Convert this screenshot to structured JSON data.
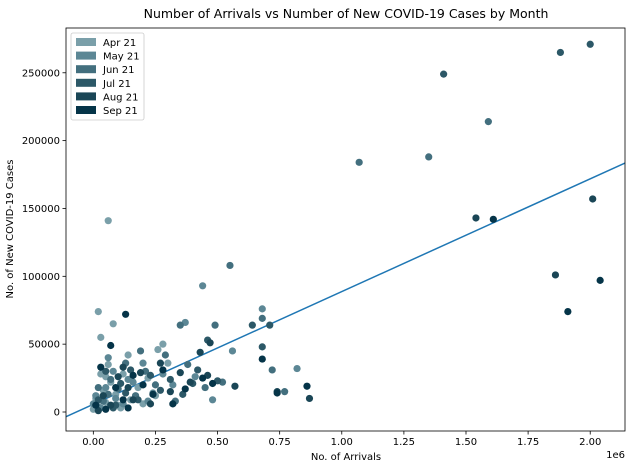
{
  "chart_data": {
    "type": "scatter",
    "title": "Number of Arrivals vs Number of New COVID-19 Cases by Month",
    "xlabel": "No. of Arrivals",
    "ylabel": "No. of New COVID-19 Cases",
    "x_offset_text": "1e6",
    "xlim": [
      -0.11,
      2.14
    ],
    "ylim": [
      -14000,
      283000
    ],
    "x_ticks": [
      0.0,
      0.25,
      0.5,
      0.75,
      1.0,
      1.25,
      1.5,
      1.75,
      2.0
    ],
    "x_tick_labels": [
      "0.00",
      "0.25",
      "0.50",
      "0.75",
      "1.00",
      "1.25",
      "1.50",
      "1.75",
      "2.00"
    ],
    "y_ticks": [
      0,
      50000,
      100000,
      150000,
      200000,
      250000
    ],
    "y_tick_labels": [
      "0",
      "50000",
      "100000",
      "150000",
      "200000",
      "250000"
    ],
    "grid": false,
    "legend_position": "top-left",
    "trendline": {
      "color": "#1f77b4",
      "x": [
        -0.11,
        2.14
      ],
      "y": [
        -3500,
        183500
      ]
    },
    "series": [
      {
        "name": "Apr 21",
        "color": "#7a9fa9",
        "points": [
          [
            0.06,
            141000
          ],
          [
            0.02,
            74000
          ],
          [
            0.03,
            55000
          ],
          [
            0.08,
            65000
          ],
          [
            0.01,
            10000
          ],
          [
            0.02,
            4000
          ],
          [
            0.04,
            16000
          ],
          [
            0.05,
            7000
          ],
          [
            0.07,
            22000
          ],
          [
            0.09,
            13000
          ],
          [
            0.11,
            3000
          ],
          [
            0.12,
            28000
          ],
          [
            0.15,
            9000
          ],
          [
            0.18,
            18000
          ],
          [
            0.22,
            25000
          ],
          [
            0.25,
            12000
          ],
          [
            0.28,
            50000
          ],
          [
            0.3,
            36000
          ],
          [
            0.03,
            28000
          ],
          [
            0.06,
            35000
          ],
          [
            0.1,
            5000
          ],
          [
            0.14,
            42000
          ],
          [
            0.2,
            6000
          ],
          [
            0.26,
            46000
          ],
          [
            0.0,
            2000
          ],
          [
            0.05,
            26000
          ]
        ]
      },
      {
        "name": "May 21",
        "color": "#5c8795",
        "points": [
          [
            0.68,
            76000
          ],
          [
            0.82,
            32000
          ],
          [
            0.56,
            45000
          ],
          [
            0.37,
            66000
          ],
          [
            0.44,
            93000
          ],
          [
            0.48,
            9000
          ],
          [
            0.03,
            3000
          ],
          [
            0.05,
            18000
          ],
          [
            0.08,
            30000
          ],
          [
            0.12,
            6000
          ],
          [
            0.16,
            22000
          ],
          [
            0.2,
            36000
          ],
          [
            0.24,
            14000
          ],
          [
            0.28,
            28000
          ],
          [
            0.32,
            20000
          ],
          [
            0.41,
            26000
          ],
          [
            0.01,
            12000
          ],
          [
            0.09,
            10000
          ],
          [
            0.14,
            24000
          ],
          [
            0.22,
            8000
          ],
          [
            0.0,
            6000
          ],
          [
            0.06,
            40000
          ]
        ]
      },
      {
        "name": "Jun 21",
        "color": "#436f7e",
        "points": [
          [
            1.07,
            184000
          ],
          [
            1.35,
            188000
          ],
          [
            1.59,
            214000
          ],
          [
            0.55,
            108000
          ],
          [
            0.35,
            64000
          ],
          [
            0.49,
            64000
          ],
          [
            0.68,
            69000
          ],
          [
            0.72,
            31000
          ],
          [
            0.77,
            15000
          ],
          [
            0.04,
            8000
          ],
          [
            0.07,
            24000
          ],
          [
            0.1,
            17000
          ],
          [
            0.13,
            36000
          ],
          [
            0.17,
            12000
          ],
          [
            0.21,
            30000
          ],
          [
            0.25,
            20000
          ],
          [
            0.29,
            42000
          ],
          [
            0.33,
            8000
          ],
          [
            0.38,
            35000
          ],
          [
            0.45,
            18000
          ],
          [
            0.52,
            22000
          ],
          [
            0.02,
            18000
          ],
          [
            0.06,
            13000
          ],
          [
            0.19,
            45000
          ]
        ]
      },
      {
        "name": "Jul 21",
        "color": "#2c5867",
        "points": [
          [
            1.41,
            249000
          ],
          [
            1.88,
            265000
          ],
          [
            2.0,
            271000
          ],
          [
            0.71,
            64000
          ],
          [
            0.64,
            64000
          ],
          [
            0.46,
            53000
          ],
          [
            0.68,
            48000
          ],
          [
            0.4,
            21000
          ],
          [
            0.05,
            30000
          ],
          [
            0.09,
            5000
          ],
          [
            0.11,
            21000
          ],
          [
            0.15,
            31000
          ],
          [
            0.18,
            9000
          ],
          [
            0.23,
            27000
          ],
          [
            0.27,
            16000
          ],
          [
            0.31,
            24000
          ],
          [
            0.36,
            13000
          ],
          [
            0.42,
            31000
          ],
          [
            0.5,
            23000
          ],
          [
            0.02,
            9000
          ],
          [
            0.13,
            14000
          ],
          [
            0.08,
            3000
          ]
        ]
      },
      {
        "name": "Aug 21",
        "color": "#1a4656",
        "points": [
          [
            1.54,
            143000
          ],
          [
            1.86,
            101000
          ],
          [
            2.01,
            157000
          ],
          [
            0.47,
            51000
          ],
          [
            0.35,
            29000
          ],
          [
            0.43,
            44000
          ],
          [
            0.57,
            19000
          ],
          [
            0.74,
            15000
          ],
          [
            0.87,
            10000
          ],
          [
            0.04,
            12000
          ],
          [
            0.07,
            5000
          ],
          [
            0.1,
            26000
          ],
          [
            0.14,
            18000
          ],
          [
            0.19,
            29000
          ],
          [
            0.23,
            6000
          ],
          [
            0.27,
            36000
          ],
          [
            0.31,
            15000
          ],
          [
            0.39,
            22000
          ],
          [
            0.46,
            27000
          ],
          [
            0.02,
            1000
          ],
          [
            0.12,
            33000
          ],
          [
            0.16,
            9000
          ]
        ]
      },
      {
        "name": "Sep 21",
        "color": "#053448",
        "points": [
          [
            1.61,
            142000
          ],
          [
            1.91,
            74000
          ],
          [
            2.04,
            97000
          ],
          [
            0.68,
            39000
          ],
          [
            0.86,
            19000
          ],
          [
            0.74,
            14000
          ],
          [
            0.13,
            72000
          ],
          [
            0.07,
            49000
          ],
          [
            0.03,
            33000
          ],
          [
            0.05,
            2000
          ],
          [
            0.09,
            18000
          ],
          [
            0.12,
            9000
          ],
          [
            0.16,
            27000
          ],
          [
            0.2,
            20000
          ],
          [
            0.24,
            13000
          ],
          [
            0.28,
            31000
          ],
          [
            0.32,
            6000
          ],
          [
            0.37,
            17000
          ],
          [
            0.44,
            25000
          ],
          [
            0.48,
            21000
          ],
          [
            0.01,
            5000
          ],
          [
            0.14,
            3000
          ]
        ]
      }
    ]
  }
}
